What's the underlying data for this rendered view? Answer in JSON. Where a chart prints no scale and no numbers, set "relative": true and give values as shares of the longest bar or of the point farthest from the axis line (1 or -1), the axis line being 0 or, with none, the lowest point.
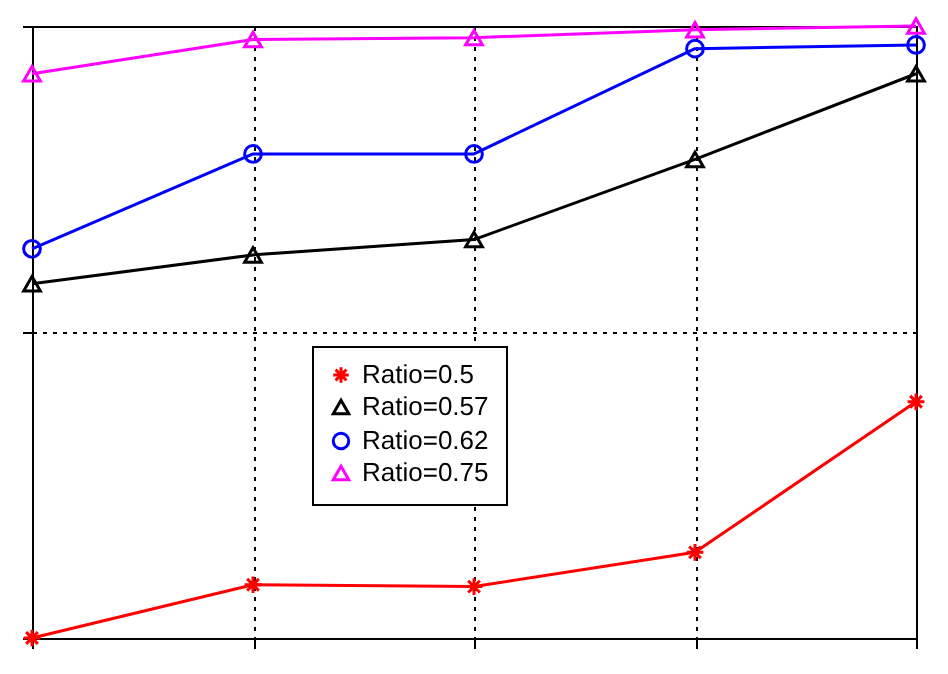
{
  "chart_data": {
    "type": "line",
    "relative": true,
    "categories": [
      null,
      null,
      null,
      null,
      null
    ],
    "series": [
      {
        "name": "Ratio=0.5",
        "color": "#ff0000",
        "marker": "cross",
        "values": [
          0,
          0.087,
          0.084,
          0.14,
          0.386
        ]
      },
      {
        "name": "Ratio=0.57",
        "color": "#000000",
        "marker": "triangle",
        "values": [
          0.579,
          0.626,
          0.651,
          0.782,
          0.922
        ]
      },
      {
        "name": "Ratio=0.62",
        "color": "#0000ff",
        "marker": "circle",
        "values": [
          0.636,
          0.791,
          0.791,
          0.963,
          0.969
        ]
      },
      {
        "name": "Ratio=0.75",
        "color": "#ff00ff",
        "marker": "triangle",
        "values": [
          0.922,
          0.978,
          0.981,
          0.994,
          1
        ]
      }
    ],
    "grid": true,
    "legend": "left",
    "line_style": "solid"
  }
}
